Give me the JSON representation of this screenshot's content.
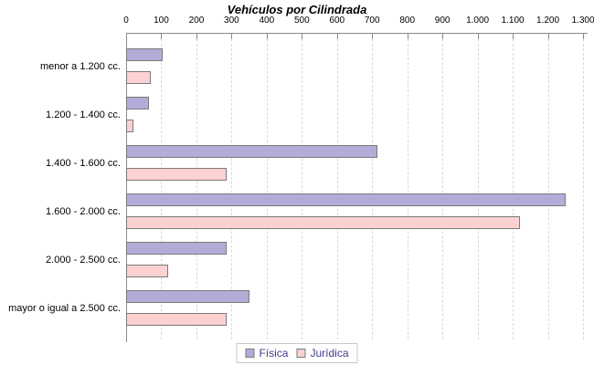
{
  "title": "Vehículos por Cilindrada",
  "chart_data": {
    "type": "bar",
    "orientation": "horizontal",
    "title": "Vehículos por Cilindrada",
    "categories": [
      "menor a 1.200 cc.",
      "1.200 - 1.400 cc.",
      "1.400 - 1.600 cc.",
      "1.600 - 2.000 cc.",
      "2.000 - 2.500 cc.",
      "mayor o igual a 2.500 cc."
    ],
    "series": [
      {
        "name": "Física",
        "values": [
          105,
          65,
          715,
          1250,
          285,
          350
        ],
        "fill": "#b5abd8",
        "border": "#7a7a7a"
      },
      {
        "name": "Jurídica",
        "values": [
          70,
          20,
          285,
          1120,
          120,
          285
        ],
        "fill": "#fcd1d2",
        "border": "#7a7a7a"
      }
    ],
    "xlim": [
      0,
      1300
    ],
    "x_tick_step": 100,
    "x_tick_labels": [
      "0",
      "100",
      "200",
      "300",
      "400",
      "500",
      "600",
      "700",
      "800",
      "900",
      "1.000",
      "1.100",
      "1.200",
      "1.300"
    ],
    "grid": "dashed-vertical",
    "legend_position": "bottom-center"
  },
  "legend": {
    "items": [
      {
        "label": "Física",
        "color": "#b5abd8"
      },
      {
        "label": "Jurídica",
        "color": "#fcd1d2"
      }
    ]
  },
  "colors": {
    "axis": "#8a8a8a",
    "gridline": "#d9d9d9",
    "bar_border": "#7a7a7a",
    "legend_text": "#433c8f",
    "legend_border": "#c9c9c9",
    "text": "#000000"
  }
}
